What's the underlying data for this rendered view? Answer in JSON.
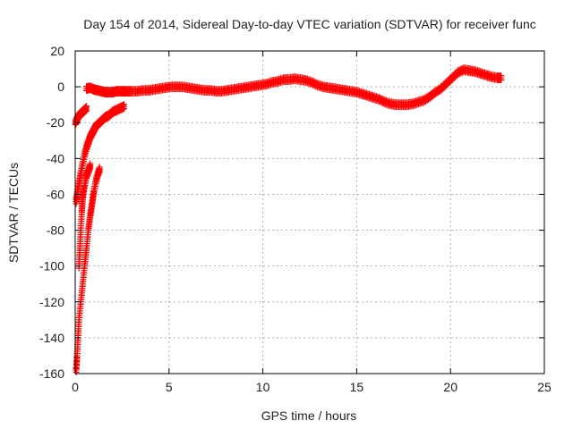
{
  "chart_data": {
    "type": "scatter",
    "title": "Day 154 of 2014, Sidereal Day-to-day VTEC variation (SDTVAR) for receiver func",
    "xlabel": "GPS time / hours",
    "ylabel": "SDTVAR / TECUs",
    "xlim": [
      0,
      25
    ],
    "ylim": [
      -160,
      20
    ],
    "xticks": [
      0,
      5,
      10,
      15,
      20,
      25
    ],
    "yticks": [
      -160,
      -140,
      -120,
      -100,
      -80,
      -60,
      -40,
      -20,
      0,
      20
    ],
    "grid": true,
    "marker": "+",
    "color": "#ff0000",
    "series": [
      {
        "name": "main-trace",
        "points": [
          [
            0.6,
            -1
          ],
          [
            0.8,
            -0.5
          ],
          [
            1.0,
            -1.5
          ],
          [
            1.2,
            -2
          ],
          [
            1.4,
            -2.5
          ],
          [
            1.6,
            -3
          ],
          [
            1.8,
            -3
          ],
          [
            2.0,
            -3
          ],
          [
            2.2,
            -2.5
          ],
          [
            2.4,
            -2.5
          ],
          [
            2.6,
            -2.5
          ],
          [
            2.8,
            -2.5
          ],
          [
            3.0,
            -2.5
          ],
          [
            3.3,
            -2.5
          ],
          [
            3.6,
            -2
          ],
          [
            3.9,
            -2
          ],
          [
            4.2,
            -1.5
          ],
          [
            4.5,
            -1
          ],
          [
            4.8,
            -0.5
          ],
          [
            5.1,
            0
          ],
          [
            5.4,
            0
          ],
          [
            5.7,
            0
          ],
          [
            6.0,
            -0.5
          ],
          [
            6.3,
            -1
          ],
          [
            6.6,
            -1.5
          ],
          [
            6.9,
            -2
          ],
          [
            7.2,
            -2
          ],
          [
            7.5,
            -2.5
          ],
          [
            7.8,
            -2.5
          ],
          [
            8.1,
            -2
          ],
          [
            8.4,
            -1.5
          ],
          [
            8.7,
            -1
          ],
          [
            9.0,
            -0.5
          ],
          [
            9.3,
            0
          ],
          [
            9.6,
            0.5
          ],
          [
            9.9,
            1
          ],
          [
            10.2,
            1.5
          ],
          [
            10.5,
            2.5
          ],
          [
            10.8,
            3
          ],
          [
            11.1,
            4
          ],
          [
            11.4,
            4
          ],
          [
            11.7,
            4.5
          ],
          [
            12.0,
            4
          ],
          [
            12.3,
            3.5
          ],
          [
            12.6,
            2.5
          ],
          [
            12.9,
            1
          ],
          [
            13.2,
            0
          ],
          [
            13.5,
            -0.5
          ],
          [
            13.8,
            -1
          ],
          [
            14.1,
            -1.5
          ],
          [
            14.4,
            -2
          ],
          [
            14.7,
            -2.5
          ],
          [
            15.0,
            -3
          ],
          [
            15.3,
            -4
          ],
          [
            15.6,
            -5
          ],
          [
            15.9,
            -6
          ],
          [
            16.2,
            -7
          ],
          [
            16.5,
            -8.5
          ],
          [
            16.8,
            -9.5
          ],
          [
            17.1,
            -10
          ],
          [
            17.4,
            -10
          ],
          [
            17.7,
            -10
          ],
          [
            18.0,
            -9.5
          ],
          [
            18.3,
            -8.5
          ],
          [
            18.6,
            -7.5
          ],
          [
            18.9,
            -5.5
          ],
          [
            19.2,
            -3
          ],
          [
            19.5,
            -1
          ],
          [
            19.8,
            2
          ],
          [
            20.1,
            5
          ],
          [
            20.4,
            8
          ],
          [
            20.7,
            9.5
          ],
          [
            21.0,
            9
          ],
          [
            21.3,
            8.5
          ],
          [
            21.6,
            7.5
          ],
          [
            21.9,
            6.5
          ],
          [
            22.2,
            5.5
          ],
          [
            22.5,
            5
          ],
          [
            22.7,
            5
          ]
        ]
      },
      {
        "name": "converging-arc-1",
        "points": [
          [
            0.02,
            -20
          ],
          [
            0.1,
            -18
          ],
          [
            0.2,
            -16
          ],
          [
            0.3,
            -15
          ],
          [
            0.4,
            -14
          ],
          [
            0.5,
            -13
          ],
          [
            0.6,
            -12
          ]
        ]
      },
      {
        "name": "converging-arc-2",
        "points": [
          [
            0.05,
            -64
          ],
          [
            0.1,
            -60
          ],
          [
            0.2,
            -54
          ],
          [
            0.3,
            -48
          ],
          [
            0.4,
            -43
          ],
          [
            0.5,
            -38
          ],
          [
            0.6,
            -34
          ],
          [
            0.7,
            -31
          ],
          [
            0.8,
            -28
          ],
          [
            0.9,
            -26
          ],
          [
            1.0,
            -24
          ],
          [
            1.1,
            -22
          ],
          [
            1.2,
            -21
          ],
          [
            1.4,
            -19
          ],
          [
            1.6,
            -17
          ],
          [
            1.8,
            -16
          ],
          [
            2.0,
            -14
          ],
          [
            2.2,
            -13
          ],
          [
            2.4,
            -12
          ],
          [
            2.6,
            -11
          ]
        ]
      },
      {
        "name": "converging-arc-3",
        "points": [
          [
            0.2,
            -100
          ],
          [
            0.25,
            -90
          ],
          [
            0.3,
            -80
          ],
          [
            0.35,
            -70
          ],
          [
            0.4,
            -62
          ],
          [
            0.5,
            -55
          ],
          [
            0.6,
            -50
          ],
          [
            0.7,
            -47
          ],
          [
            0.8,
            -44
          ]
        ]
      },
      {
        "name": "converging-arc-4",
        "points": [
          [
            0.05,
            -158
          ],
          [
            0.1,
            -150
          ],
          [
            0.15,
            -140
          ],
          [
            0.2,
            -130
          ],
          [
            0.3,
            -120
          ],
          [
            0.4,
            -110
          ],
          [
            0.5,
            -100
          ],
          [
            0.55,
            -95
          ],
          [
            0.6,
            -90
          ],
          [
            0.7,
            -80
          ],
          [
            0.8,
            -72
          ],
          [
            0.9,
            -65
          ],
          [
            1.0,
            -58
          ],
          [
            1.1,
            -53
          ],
          [
            1.2,
            -49
          ],
          [
            1.3,
            -46
          ]
        ]
      }
    ]
  }
}
